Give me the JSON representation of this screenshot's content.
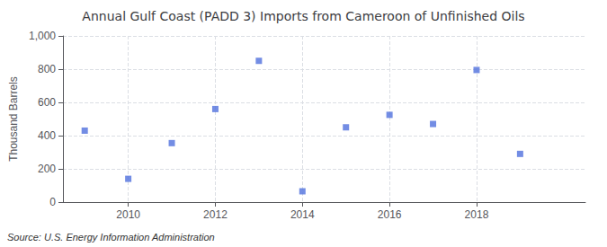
{
  "chart_data": {
    "type": "scatter",
    "title": "Annual Gulf Coast (PADD 3) Imports from Cameroon of Unfinished Oils",
    "ylabel": "Thousand Barrels",
    "source": "Source: U.S. Energy Information Administration",
    "x": [
      2009,
      2010,
      2011,
      2012,
      2013,
      2014,
      2015,
      2016,
      2017,
      2018,
      2019
    ],
    "values": [
      430,
      140,
      355,
      560,
      850,
      65,
      450,
      525,
      470,
      795,
      290
    ],
    "marker": "square",
    "xlim": [
      2008.5,
      2020.5
    ],
    "xticks": [
      2010,
      2012,
      2014,
      2016,
      2018
    ],
    "ylim": [
      0,
      1000
    ],
    "yticks": [
      0,
      200,
      400,
      600,
      800,
      {
        "value": 1000,
        "label": "1,000"
      }
    ],
    "grid": true
  }
}
